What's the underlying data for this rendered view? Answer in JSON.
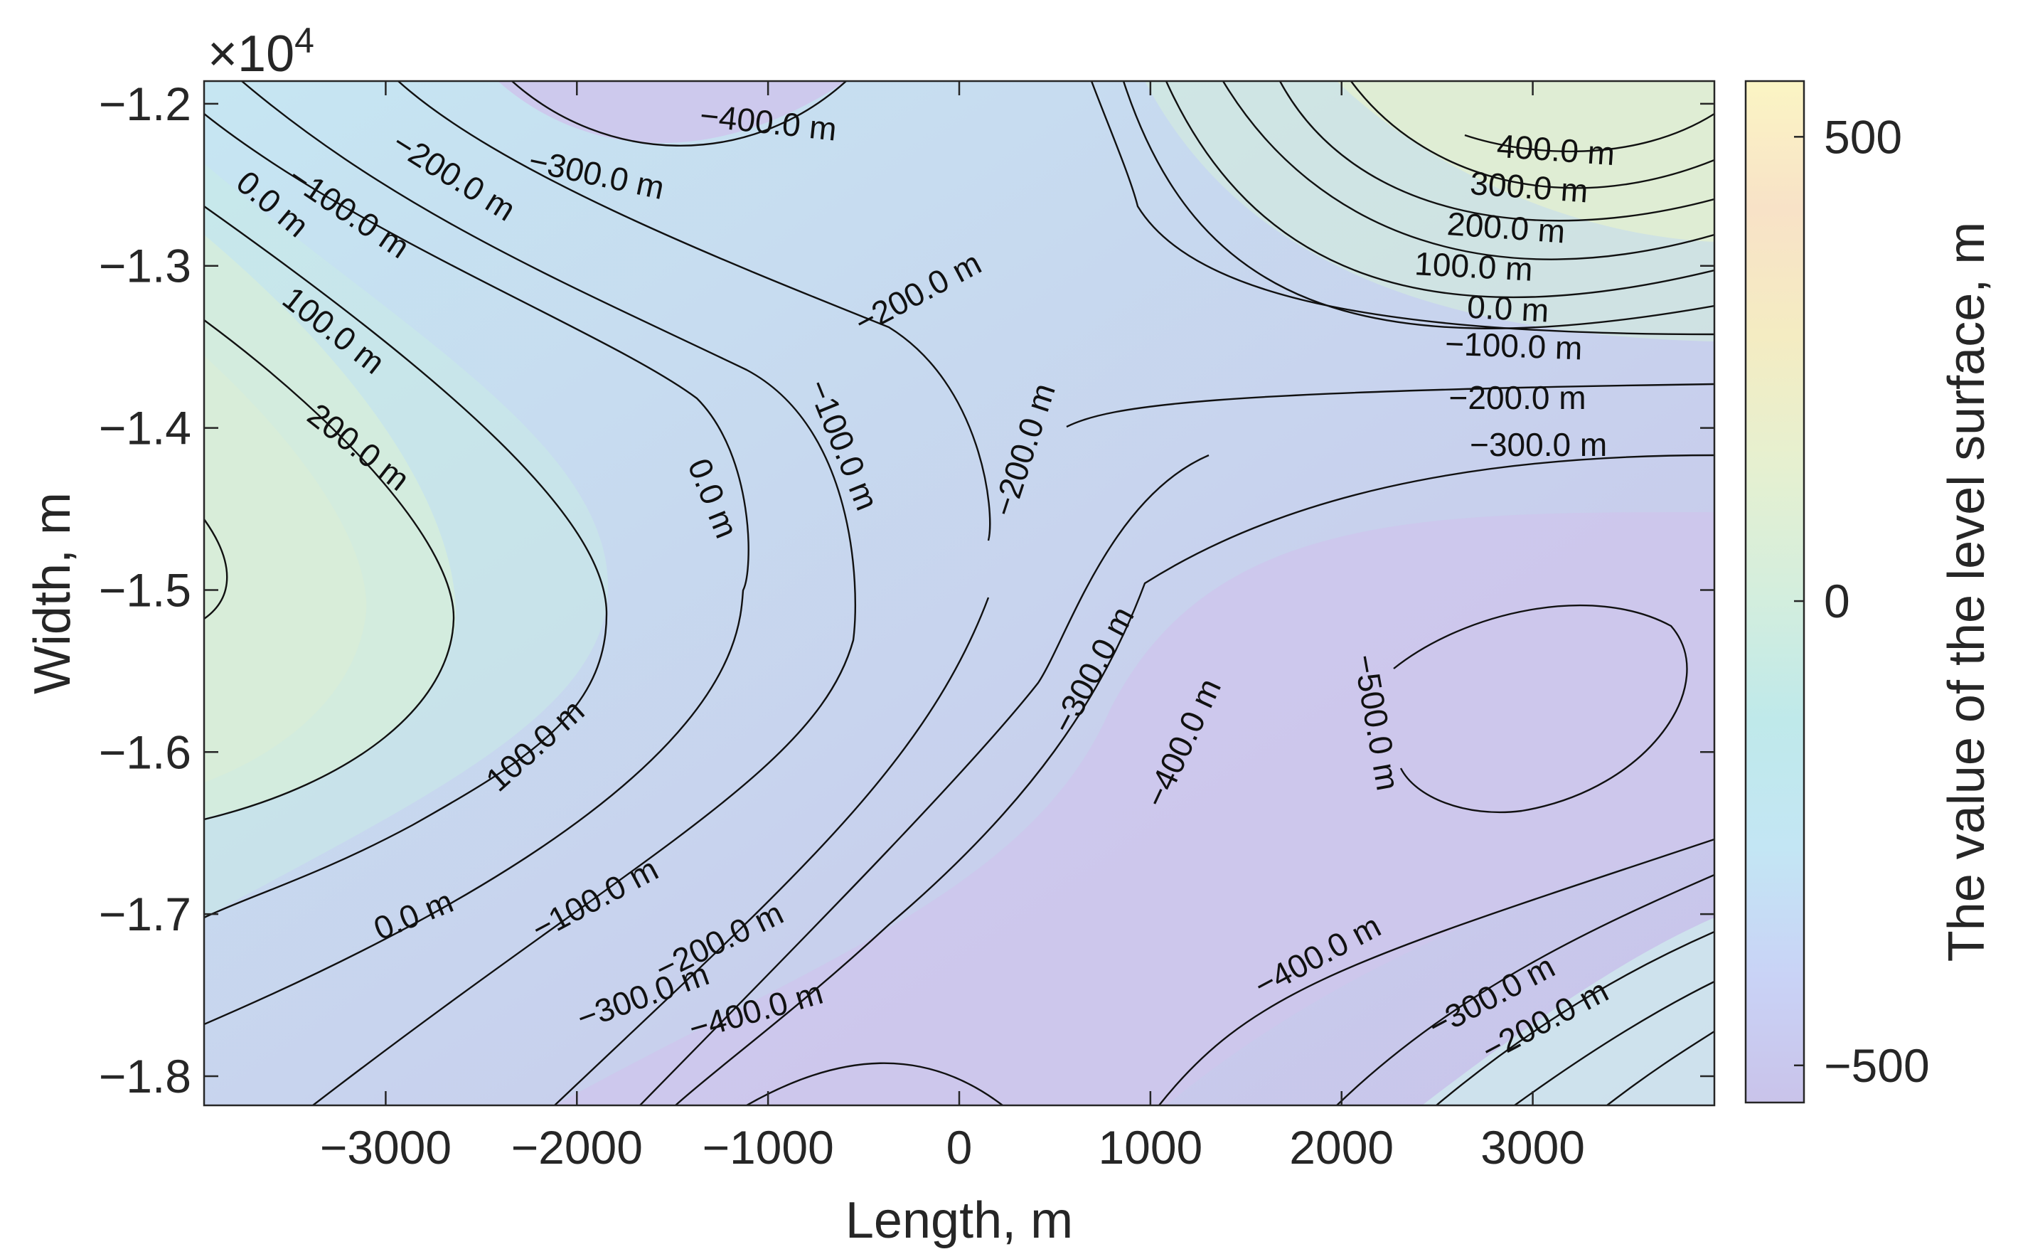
{
  "chart_data": {
    "type": "contour",
    "title": "",
    "xlabel": "Length, m",
    "ylabel": "Width, m",
    "colorbar_label": "The value of the level surface, m",
    "y_exponent_label": "×10",
    "y_exponent_power": "4",
    "xlim": [
      -3950,
      3950
    ],
    "ylim": [
      -18.18,
      -11.86
    ],
    "x_ticks": [
      -3000,
      -2000,
      -1000,
      0,
      1000,
      2000,
      3000
    ],
    "x_tick_labels": [
      "−3000",
      "−2000",
      "−1000",
      "0",
      "1000",
      "2000",
      "3000"
    ],
    "y_ticks": [
      -18,
      -17,
      -16,
      -15,
      -14,
      -13,
      -12
    ],
    "y_tick_labels": [
      "−1.8",
      "−1.7",
      "−1.6",
      "−1.5",
      "−1.4",
      "−1.3",
      "−1.2"
    ],
    "colorbar_range": [
      -540,
      560
    ],
    "colorbar_ticks": [
      -500,
      0,
      500
    ],
    "colorbar_tick_labels": [
      "−500",
      "0",
      "500"
    ],
    "colormap": [
      "#c9c3ea",
      "#c9d3f6",
      "#c3e6f4",
      "#bfe9ea",
      "#d4eedd",
      "#e6f0d0",
      "#f4ecc2",
      "#f8e2c7",
      "#fbf5c4"
    ],
    "contour_levels": [
      -500,
      -400,
      -300,
      -200,
      -100,
      0,
      100,
      200,
      300,
      400
    ],
    "contour_labels": [
      {
        "text": "−400.0 m",
        "x": -1000,
        "y": -12.13,
        "angle": 6
      },
      {
        "text": "−300.0 m",
        "x": -1900,
        "y": -12.45,
        "angle": 12
      },
      {
        "text": "−200.0 m",
        "x": -2650,
        "y": -12.46,
        "angle": 32
      },
      {
        "text": "−100.0 m",
        "x": -3200,
        "y": -12.68,
        "angle": 34
      },
      {
        "text": "0.0 m",
        "x": -3600,
        "y": -12.63,
        "angle": 40
      },
      {
        "text": "100.0 m",
        "x": -3280,
        "y": -13.41,
        "angle": 38
      },
      {
        "text": "200.0 m",
        "x": -3150,
        "y": -14.13,
        "angle": 38
      },
      {
        "text": "−200.0 m",
        "x": -210,
        "y": -13.18,
        "angle": -28
      },
      {
        "text": "−100.0 m",
        "x": -620,
        "y": -14.11,
        "angle": 68
      },
      {
        "text": "0.0 m",
        "x": -1300,
        "y": -14.44,
        "angle": 68
      },
      {
        "text": "−200.0 m",
        "x": 350,
        "y": -14.14,
        "angle": -72
      },
      {
        "text": "400.0 m",
        "x": 3120,
        "y": -12.3,
        "angle": 4
      },
      {
        "text": "300.0 m",
        "x": 2980,
        "y": -12.53,
        "angle": 4
      },
      {
        "text": "200.0 m",
        "x": 2860,
        "y": -12.78,
        "angle": 4
      },
      {
        "text": "100.0 m",
        "x": 2690,
        "y": -13.02,
        "angle": 3
      },
      {
        "text": "0.0 m",
        "x": 2870,
        "y": -13.28,
        "angle": 3
      },
      {
        "text": "−100.0 m",
        "x": 2900,
        "y": -13.51,
        "angle": 2
      },
      {
        "text": "−200.0 m",
        "x": 2920,
        "y": -13.83,
        "angle": 0
      },
      {
        "text": "−300.0 m",
        "x": 3030,
        "y": -14.12,
        "angle": 0
      },
      {
        "text": "100.0 m",
        "x": -2210,
        "y": -15.97,
        "angle": -42
      },
      {
        "text": "0.0 m",
        "x": -2850,
        "y": -17.02,
        "angle": -22
      },
      {
        "text": "−100.0 m",
        "x": -1900,
        "y": -16.92,
        "angle": -28
      },
      {
        "text": "−200.0 m",
        "x": -1250,
        "y": -17.18,
        "angle": -26
      },
      {
        "text": "−300.0 m",
        "x": -1650,
        "y": -17.52,
        "angle": -20
      },
      {
        "text": "−400.0 m",
        "x": -1060,
        "y": -17.61,
        "angle": -16
      },
      {
        "text": "−300.0 m",
        "x": 710,
        "y": -15.5,
        "angle": -62
      },
      {
        "text": "−400.0 m",
        "x": 1180,
        "y": -15.95,
        "angle": -65
      },
      {
        "text": "−500.0 m",
        "x": 2170,
        "y": -15.82,
        "angle": 80
      },
      {
        "text": "−400.0 m",
        "x": 1880,
        "y": -17.27,
        "angle": -28
      },
      {
        "text": "−300.0 m",
        "x": 2790,
        "y": -17.52,
        "angle": -28
      },
      {
        "text": "−200.0 m",
        "x": 3070,
        "y": -17.67,
        "angle": -28
      }
    ]
  }
}
